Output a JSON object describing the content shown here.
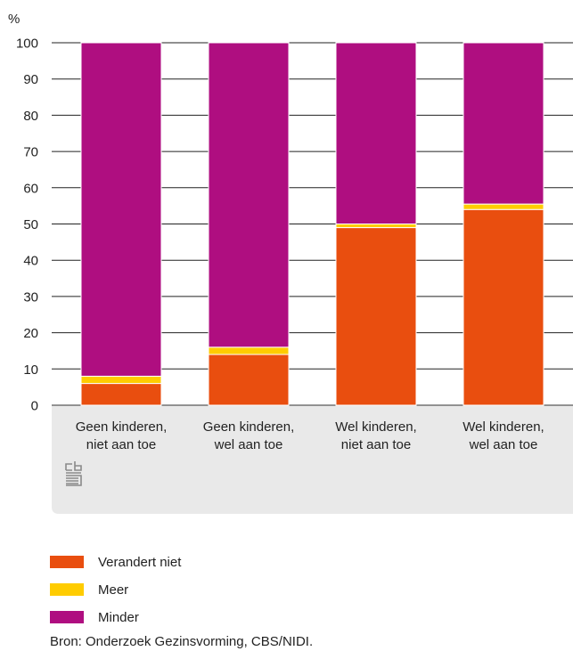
{
  "chart_data": {
    "type": "bar",
    "stacked": true,
    "ylabel": "%",
    "ylim": [
      0,
      100
    ],
    "yticks": [
      0,
      10,
      20,
      30,
      40,
      50,
      60,
      70,
      80,
      90,
      100
    ],
    "grid": true,
    "categories": [
      [
        "Geen kinderen,",
        "niet aan toe"
      ],
      [
        "Geen kinderen,",
        "wel aan toe"
      ],
      [
        "Wel kinderen,",
        "niet aan toe"
      ],
      [
        "Wel kinderen,",
        "wel aan toe"
      ]
    ],
    "series": [
      {
        "name": "Verandert niet",
        "color": "#e94e0f",
        "values": [
          6,
          14,
          49,
          54
        ]
      },
      {
        "name": "Meer",
        "color": "#ffcc00",
        "values": [
          2,
          2,
          1,
          1.5
        ]
      },
      {
        "name": "Minder",
        "color": "#af0e80",
        "values": [
          92,
          84,
          50,
          44.5
        ]
      }
    ],
    "legend_position": "bottom-left"
  },
  "source": "Bron: Onderzoek Gezinsvorming, CBS/NIDI."
}
